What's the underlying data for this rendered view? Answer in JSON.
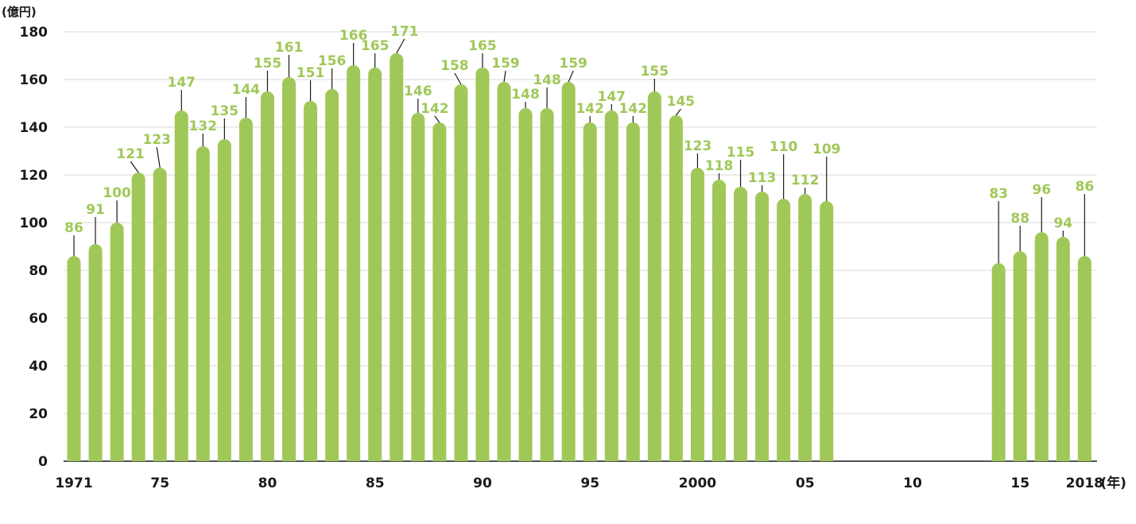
{
  "chart_data": {
    "type": "bar",
    "y_unit": "(億円)",
    "x_unit": "(年)",
    "ylim": [
      0,
      180
    ],
    "yticks": [
      0,
      20,
      40,
      60,
      80,
      100,
      120,
      140,
      160,
      180
    ],
    "grid": true,
    "x": [
      1971,
      1972,
      1973,
      1974,
      1975,
      1976,
      1977,
      1978,
      1979,
      1980,
      1981,
      1982,
      1983,
      1984,
      1985,
      1986,
      1987,
      1988,
      1989,
      1990,
      1991,
      1992,
      1993,
      1994,
      1995,
      1996,
      1997,
      1998,
      1999,
      2000,
      2001,
      2002,
      2003,
      2004,
      2005,
      2006,
      2014,
      2015,
      2016,
      2017,
      2018
    ],
    "values": [
      86,
      91,
      100,
      121,
      123,
      147,
      132,
      135,
      144,
      155,
      161,
      151,
      156,
      166,
      165,
      171,
      146,
      142,
      158,
      165,
      159,
      148,
      148,
      159,
      142,
      147,
      142,
      155,
      145,
      123,
      118,
      115,
      113,
      110,
      112,
      109,
      83,
      88,
      96,
      94,
      86
    ],
    "xticks": [
      {
        "year": 1971,
        "label": "1971"
      },
      {
        "year": 1975,
        "label": "75"
      },
      {
        "year": 1980,
        "label": "80"
      },
      {
        "year": 1985,
        "label": "85"
      },
      {
        "year": 1990,
        "label": "90"
      },
      {
        "year": 1995,
        "label": "95"
      },
      {
        "year": 2000,
        "label": "2000"
      },
      {
        "year": 2005,
        "label": "05"
      },
      {
        "year": 2010,
        "label": "10"
      },
      {
        "year": 2015,
        "label": "15"
      },
      {
        "year": 2018,
        "label": "2018"
      }
    ],
    "colors": {
      "bar": "#a0c858",
      "label": "#a0c858",
      "leader": "#1a1a1a",
      "grid": "#d9d9d9",
      "axis": "#1a1a1a"
    }
  }
}
